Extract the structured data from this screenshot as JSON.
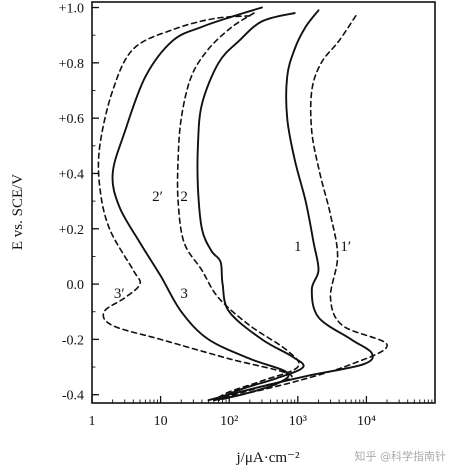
{
  "chart_data": {
    "type": "line",
    "title": "",
    "xlabel": "j/μA·cm⁻²",
    "ylabel": "E vs. SCE/V",
    "xscale": "log",
    "xlim": [
      1,
      100000
    ],
    "ylim": [
      -0.43,
      1.02
    ],
    "x_ticks": [
      {
        "value": 1,
        "label": "1"
      },
      {
        "value": 10,
        "label": "10"
      },
      {
        "value": 100,
        "label": "10²"
      },
      {
        "value": 1000,
        "label": "10³"
      },
      {
        "value": 10000,
        "label": "10⁴"
      }
    ],
    "y_ticks": [
      {
        "value": 1.0,
        "label": "+1.0"
      },
      {
        "value": 0.8,
        "label": "+0.8"
      },
      {
        "value": 0.6,
        "label": "+0.6"
      },
      {
        "value": 0.4,
        "label": "+0.4"
      },
      {
        "value": 0.2,
        "label": "+0.2"
      },
      {
        "value": 0.0,
        "label": "0.0"
      },
      {
        "value": -0.2,
        "label": "-0.2"
      },
      {
        "value": -0.4,
        "label": "-0.4"
      }
    ],
    "grid": false,
    "legend": "none",
    "series": [
      {
        "name": "1",
        "style": "solid",
        "points": [
          [
            2000,
            0.99
          ],
          [
            1300,
            0.93
          ],
          [
            900,
            0.85
          ],
          [
            700,
            0.75
          ],
          [
            700,
            0.6
          ],
          [
            900,
            0.45
          ],
          [
            1300,
            0.3
          ],
          [
            1700,
            0.15
          ],
          [
            2000,
            0.05
          ],
          [
            1600,
            -0.02
          ],
          [
            2000,
            -0.12
          ],
          [
            6000,
            -0.2
          ],
          [
            12000,
            -0.25
          ],
          [
            9000,
            -0.29
          ],
          [
            1500,
            -0.33
          ],
          [
            300,
            -0.37
          ],
          [
            100,
            -0.4
          ],
          [
            50,
            -0.42
          ]
        ]
      },
      {
        "name": "1′",
        "style": "dashed",
        "points": [
          [
            7000,
            0.97
          ],
          [
            4000,
            0.88
          ],
          [
            2200,
            0.8
          ],
          [
            1600,
            0.7
          ],
          [
            1600,
            0.55
          ],
          [
            2100,
            0.4
          ],
          [
            3000,
            0.25
          ],
          [
            3800,
            0.1
          ],
          [
            3000,
            -0.05
          ],
          [
            4500,
            -0.15
          ],
          [
            20000,
            -0.22
          ],
          [
            6000,
            -0.29
          ],
          [
            1000,
            -0.35
          ],
          [
            150,
            -0.4
          ],
          [
            70,
            -0.42
          ]
        ]
      },
      {
        "name": "2",
        "style": "solid",
        "points": [
          [
            900,
            0.98
          ],
          [
            300,
            0.95
          ],
          [
            140,
            0.88
          ],
          [
            70,
            0.8
          ],
          [
            40,
            0.65
          ],
          [
            35,
            0.5
          ],
          [
            35,
            0.35
          ],
          [
            40,
            0.2
          ],
          [
            55,
            0.12
          ],
          [
            75,
            0.08
          ],
          [
            80,
            0.0
          ],
          [
            100,
            -0.1
          ],
          [
            300,
            -0.2
          ],
          [
            800,
            -0.26
          ],
          [
            1200,
            -0.3
          ],
          [
            500,
            -0.34
          ],
          [
            150,
            -0.38
          ],
          [
            60,
            -0.42
          ]
        ]
      },
      {
        "name": "2′",
        "style": "dashed",
        "points": [
          [
            230,
            0.98
          ],
          [
            110,
            0.93
          ],
          [
            50,
            0.85
          ],
          [
            28,
            0.75
          ],
          [
            20,
            0.6
          ],
          [
            18,
            0.45
          ],
          [
            18,
            0.3
          ],
          [
            22,
            0.15
          ],
          [
            40,
            0.05
          ],
          [
            70,
            -0.05
          ],
          [
            200,
            -0.15
          ],
          [
            700,
            -0.24
          ],
          [
            1000,
            -0.3
          ],
          [
            300,
            -0.35
          ],
          [
            100,
            -0.39
          ],
          [
            60,
            -0.42
          ]
        ]
      },
      {
        "name": "3",
        "style": "solid",
        "points": [
          [
            300,
            1.0
          ],
          [
            120,
            0.97
          ],
          [
            40,
            0.93
          ],
          [
            15,
            0.88
          ],
          [
            6,
            0.75
          ],
          [
            3,
            0.55
          ],
          [
            2,
            0.4
          ],
          [
            2.5,
            0.28
          ],
          [
            5,
            0.15
          ],
          [
            10,
            0.03
          ],
          [
            20,
            -0.1
          ],
          [
            50,
            -0.2
          ],
          [
            200,
            -0.27
          ],
          [
            700,
            -0.32
          ],
          [
            500,
            -0.36
          ],
          [
            150,
            -0.4
          ],
          [
            60,
            -0.42
          ]
        ]
      },
      {
        "name": "3′",
        "style": "dashed",
        "points": [
          [
            200,
            0.97
          ],
          [
            60,
            0.96
          ],
          [
            15,
            0.92
          ],
          [
            4,
            0.85
          ],
          [
            2,
            0.7
          ],
          [
            1.3,
            0.5
          ],
          [
            1.3,
            0.35
          ],
          [
            1.8,
            0.2
          ],
          [
            4,
            0.05
          ],
          [
            5,
            0.0
          ],
          [
            3,
            -0.05
          ],
          [
            1.5,
            -0.1
          ],
          [
            2,
            -0.15
          ],
          [
            10,
            -0.2
          ],
          [
            100,
            -0.27
          ],
          [
            800,
            -0.33
          ],
          [
            300,
            -0.37
          ],
          [
            120,
            -0.4
          ],
          [
            60,
            -0.42
          ]
        ]
      }
    ],
    "annotations": [
      {
        "text": "1",
        "x": 1000,
        "y": 0.12
      },
      {
        "text": "1′",
        "x": 5000,
        "y": 0.12
      },
      {
        "text": "2",
        "x": 22,
        "y": 0.3
      },
      {
        "text": "2′",
        "x": 9,
        "y": 0.3
      },
      {
        "text": "3",
        "x": 22,
        "y": -0.05
      },
      {
        "text": "3′",
        "x": 2.5,
        "y": -0.05
      }
    ]
  },
  "watermark": "知乎 @科学指南针"
}
